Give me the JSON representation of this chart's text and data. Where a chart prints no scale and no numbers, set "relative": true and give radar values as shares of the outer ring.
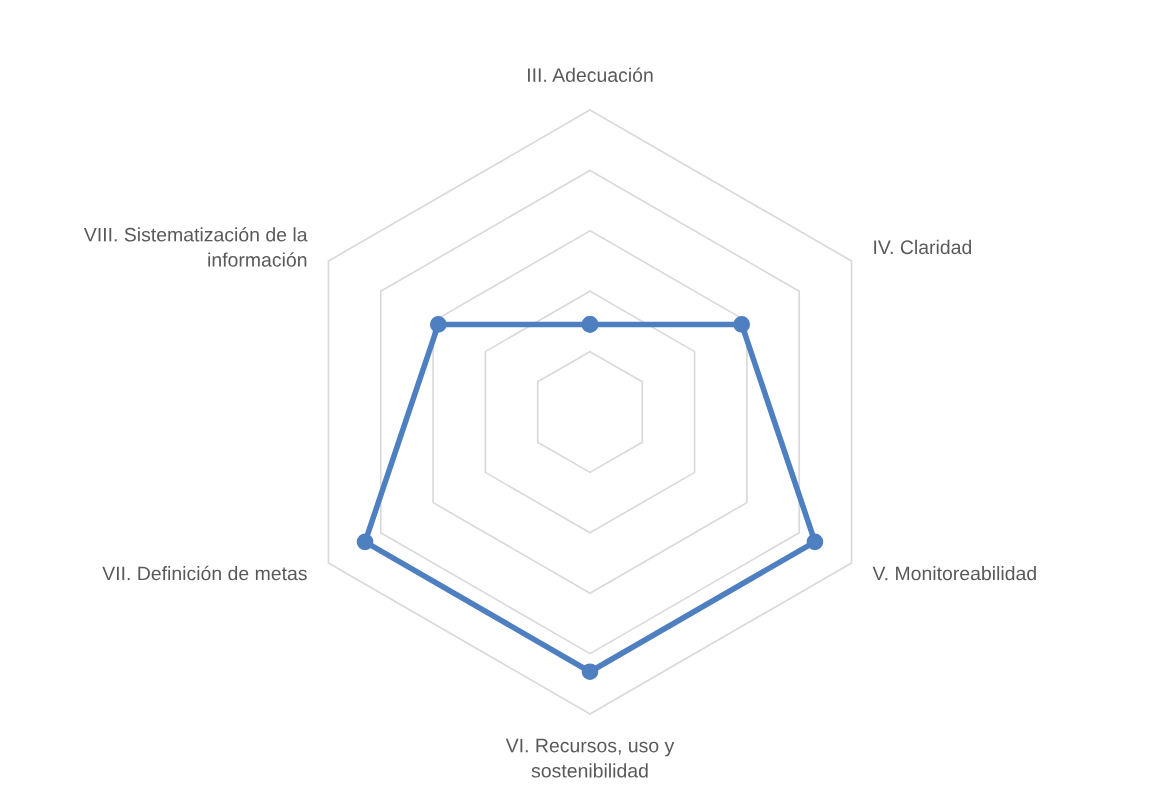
{
  "chart_data": {
    "type": "radar",
    "relative": true,
    "categories": [
      "III. Adecuación",
      "IV. Claridad",
      "V. Monitoreabilidad",
      "VI. Recursos, uso y\nsostenibilidad",
      "VII. Definición de metas",
      "VIII. Sistematización de la\ninformación"
    ],
    "series": [
      {
        "color": "#4e7fc0",
        "values": [
          0.29,
          0.58,
          0.86,
          0.86,
          0.86,
          0.58
        ]
      }
    ],
    "grid": true,
    "marker": "circle",
    "line_style": "solid"
  }
}
